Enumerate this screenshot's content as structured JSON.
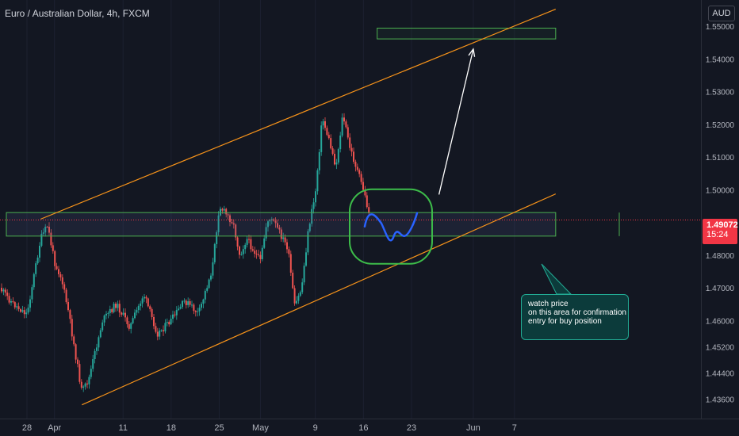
{
  "header": {
    "title": "Euro / Australian Dollar, 4h, FXCM",
    "currency": "AUD"
  },
  "price_tag": {
    "price": "1.49072",
    "countdown": "15:24"
  },
  "note": {
    "lines": [
      "watch price",
      "on this area for confirmation",
      "entry for buy position"
    ]
  },
  "colors": {
    "background": "#131722",
    "up": "#26a69a",
    "down": "#ef5350",
    "channel": "#f7931a",
    "zone": "#4caf50",
    "projection": "#2962ff",
    "current_price": "#f23645"
  },
  "chart_data": {
    "type": "candlestick",
    "title": "Euro / Australian Dollar, 4h, FXCM",
    "y_ticks": [
      "1.55000",
      "1.54000",
      "1.53000",
      "1.52000",
      "1.51000",
      "1.50000",
      "1.48000",
      "1.47000",
      "1.46000",
      "1.45200",
      "1.44400",
      "1.43600"
    ],
    "x_ticks": [
      "28",
      "Apr",
      "11",
      "18",
      "25",
      "May",
      "9",
      "16",
      "23",
      "Jun",
      "7"
    ],
    "y_range": [
      1.43,
      1.558
    ],
    "last_price": 1.49072,
    "close_path": [
      {
        "date": "2022-03-24",
        "close": 1.47
      },
      {
        "date": "2022-03-26",
        "close": 1.465
      },
      {
        "date": "2022-03-28",
        "close": 1.462
      },
      {
        "date": "2022-03-30",
        "close": 1.485
      },
      {
        "date": "2022-03-31",
        "close": 1.489
      },
      {
        "date": "2022-04-01",
        "close": 1.478
      },
      {
        "date": "2022-04-02",
        "close": 1.473
      },
      {
        "date": "2022-04-03",
        "close": 1.463
      },
      {
        "date": "2022-04-05",
        "close": 1.438
      },
      {
        "date": "2022-04-06",
        "close": 1.442
      },
      {
        "date": "2022-04-08",
        "close": 1.46
      },
      {
        "date": "2022-04-10",
        "close": 1.465
      },
      {
        "date": "2022-04-12",
        "close": 1.458
      },
      {
        "date": "2022-04-14",
        "close": 1.468
      },
      {
        "date": "2022-04-16",
        "close": 1.456
      },
      {
        "date": "2022-04-18",
        "close": 1.46
      },
      {
        "date": "2022-04-20",
        "close": 1.466
      },
      {
        "date": "2022-04-22",
        "close": 1.462
      },
      {
        "date": "2022-04-24",
        "close": 1.476
      },
      {
        "date": "2022-04-25",
        "close": 1.495
      },
      {
        "date": "2022-04-27",
        "close": 1.49
      },
      {
        "date": "2022-04-28",
        "close": 1.48
      },
      {
        "date": "2022-04-29",
        "close": 1.485
      },
      {
        "date": "2022-05-01",
        "close": 1.478
      },
      {
        "date": "2022-05-02",
        "close": 1.491
      },
      {
        "date": "2022-05-03",
        "close": 1.49
      },
      {
        "date": "2022-05-05",
        "close": 1.482
      },
      {
        "date": "2022-05-06",
        "close": 1.464
      },
      {
        "date": "2022-05-07",
        "close": 1.47
      },
      {
        "date": "2022-05-08",
        "close": 1.488
      },
      {
        "date": "2022-05-09",
        "close": 1.499
      },
      {
        "date": "2022-05-10",
        "close": 1.522
      },
      {
        "date": "2022-05-11",
        "close": 1.515
      },
      {
        "date": "2022-05-12",
        "close": 1.507
      },
      {
        "date": "2022-05-13",
        "close": 1.523
      },
      {
        "date": "2022-05-14",
        "close": 1.513
      },
      {
        "date": "2022-05-16",
        "close": 1.5
      },
      {
        "date": "2022-05-17",
        "close": 1.4907
      }
    ],
    "drawings": {
      "channel_upper": [
        [
          "2022-03-30",
          1.491
        ],
        [
          "2022-06-13",
          1.5552
        ]
      ],
      "channel_lower": [
        [
          "2022-04-05",
          1.4342
        ],
        [
          "2022-06-13",
          1.4987
        ]
      ],
      "support_zone": {
        "from": "2022-03-25",
        "to": "2022-06-13",
        "top": 1.493,
        "bottom": 1.4858
      },
      "target_zone": {
        "from": "2022-05-18",
        "to": "2022-06-13",
        "top": 1.5494,
        "bottom": 1.5461
      },
      "watch_area_center": [
        "2022-05-20",
        1.488
      ],
      "target_arrow": [
        [
          "2022-05-27",
          1.4985
        ],
        [
          "2022-06-01",
          1.543
        ]
      ]
    }
  }
}
